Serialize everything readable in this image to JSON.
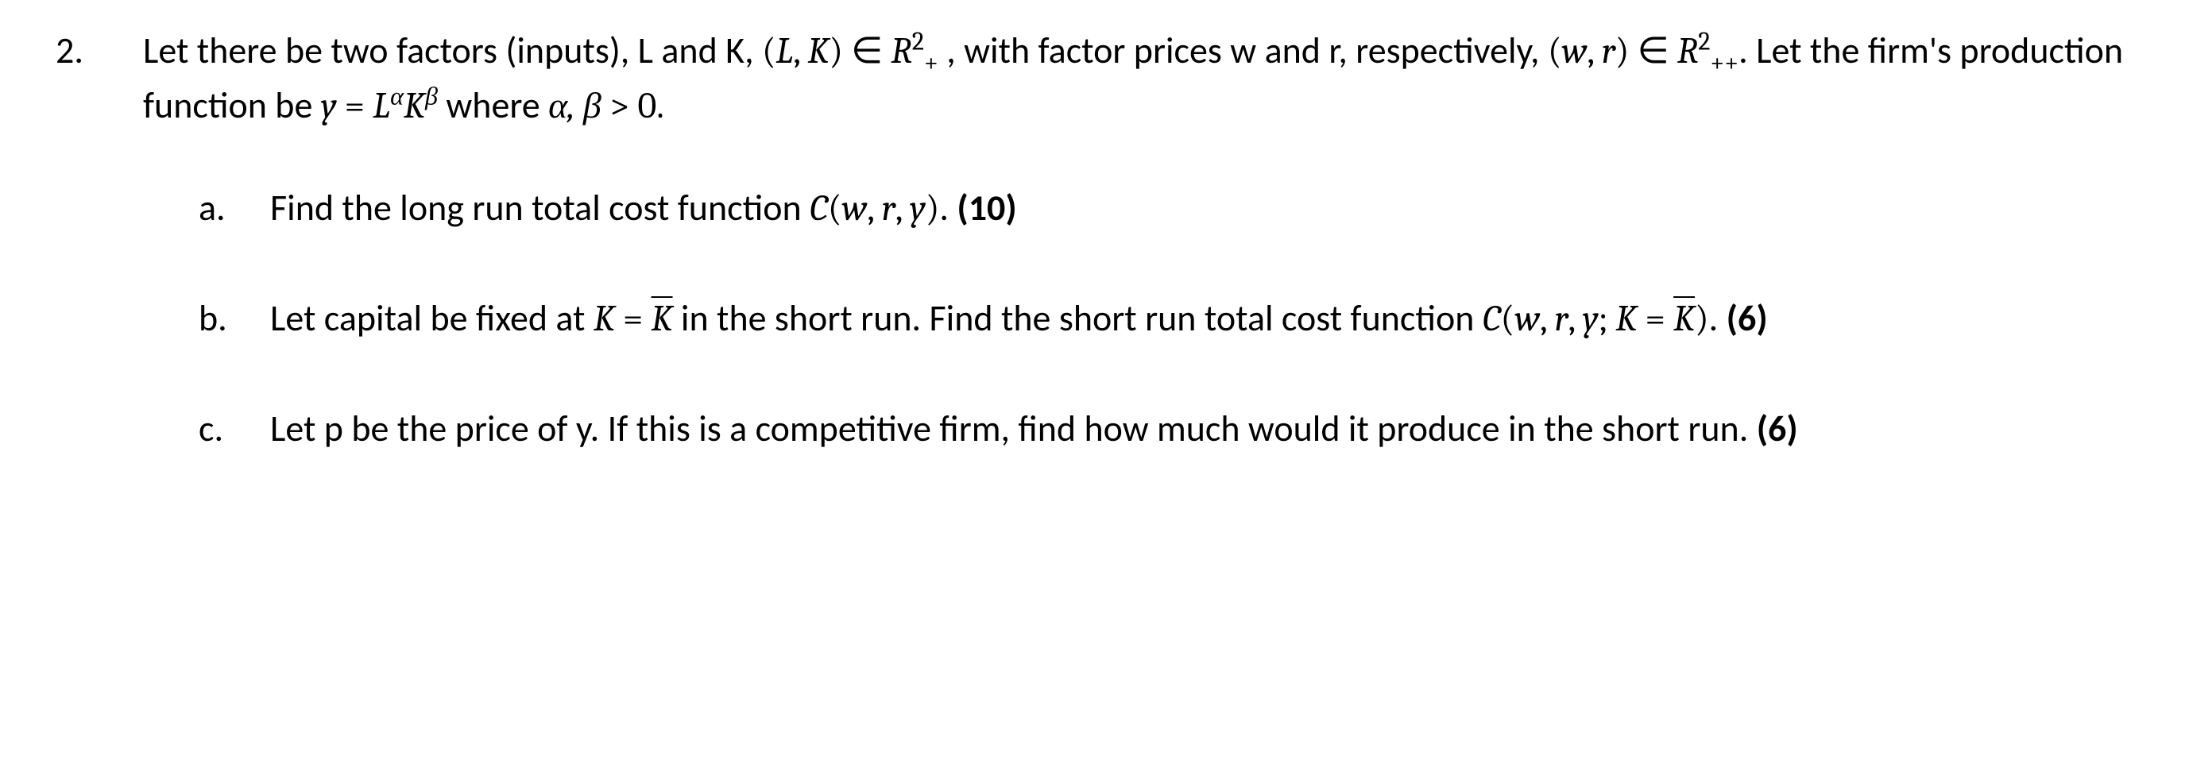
{
  "question_number": "2.",
  "intro_part1": "Let there be two factors (inputs), L and K, ",
  "intro_math1_open": "(",
  "intro_math1_L": "L",
  "intro_math1_comma": ", ",
  "intro_math1_K": "K",
  "intro_math1_close": ")",
  "intro_in1": " ∈ ",
  "intro_R1": "R",
  "intro_R1_sup": "2",
  "intro_R1_sub": "+",
  "intro_part2": " , with factor prices w and r, respectively, ",
  "intro_math2_open": "(",
  "intro_math2_w": "w",
  "intro_math2_comma": ", ",
  "intro_math2_r": "r",
  "intro_math2_close": ")",
  "intro_in2": " ∈ ",
  "intro_R2": "R",
  "intro_R2_sup": "2",
  "intro_R2_sub": "++",
  "intro_part3": ". Let the firm's production function be ",
  "intro_y": "y",
  "intro_eq": " = ",
  "intro_Lpow": "L",
  "intro_alpha": "α",
  "intro_Kpow": "K",
  "intro_beta": "β",
  "intro_where": " where ",
  "intro_ab": "α, β",
  "intro_gt": " > ",
  "intro_zero": "0.",
  "parts": {
    "a": {
      "label": "a.",
      "text1": "Find the long run total cost function ",
      "func_C": "C",
      "func_open": "(",
      "func_w": "w",
      "func_c1": ", ",
      "func_r": "r",
      "func_c2": ", ",
      "func_y": "y",
      "func_close": ")",
      "text2": ". ",
      "points": "(10)"
    },
    "b": {
      "label": "b.",
      "text1": "Let capital be fixed at ",
      "eq_K": "K",
      "eq_eq": " = ",
      "eq_Kbar": "K",
      "text2": " in the short run. Find the short run total cost function ",
      "func_C": "C",
      "func_open": "(",
      "func_w": "w",
      "func_c1": ", ",
      "func_r": "r",
      "func_c2": ", ",
      "func_y": "y",
      "func_semi": "; ",
      "func_K": "K",
      "func_eq": " = ",
      "func_Kbar": "K",
      "func_close": ")",
      "text3": ". ",
      "points": "(6)"
    },
    "c": {
      "label": "c.",
      "text1": "Let p be the price of y. If this is a competitive firm, find how much would it produce in the short run. ",
      "points": "(6)"
    }
  }
}
